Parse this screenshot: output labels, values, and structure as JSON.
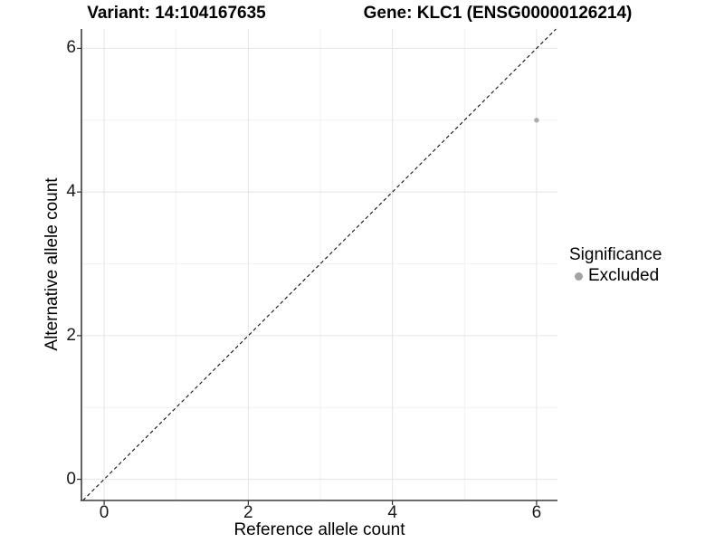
{
  "titles": {
    "variant": "Variant: 14:104167635",
    "gene": "Gene: KLC1 (ENSG00000126214)"
  },
  "axes": {
    "x_label": "Reference allele count",
    "y_label": "Alternative allele count"
  },
  "legend": {
    "title": "Significance",
    "items": [
      {
        "label": "Excluded",
        "color": "#a3a3a3"
      }
    ]
  },
  "colors": {
    "background": "#ffffff",
    "grid_major": "#e6e6e6",
    "grid_minor": "#f1f1f1",
    "axis_line": "#3c3c3c",
    "tick_mark": "#333333",
    "tick_text": "#1a1a1a",
    "point": "#ababab",
    "dashed_line": "#111111"
  },
  "chart_data": {
    "type": "scatter",
    "title": "Variant: 14:104167635   Gene: KLC1 (ENSG00000126214)",
    "xlabel": "Reference allele count",
    "ylabel": "Alternative allele count",
    "xlim": [
      -0.315,
      6.29
    ],
    "ylim": [
      -0.295,
      6.27
    ],
    "x_ticks": [
      0,
      2,
      4,
      6
    ],
    "y_ticks": [
      0,
      2,
      4,
      6
    ],
    "x_minor_ticks": [
      1,
      3,
      5
    ],
    "y_minor_ticks": [
      1,
      3,
      5
    ],
    "grid": true,
    "legend_position": "right-center",
    "series": [
      {
        "name": "Excluded",
        "color": "#ababab",
        "points": [
          {
            "x": 6,
            "y": 5
          }
        ]
      }
    ],
    "reference_line": {
      "kind": "identity",
      "intercept": 0,
      "slope": 1,
      "style": "dashed",
      "color": "#111111"
    }
  }
}
